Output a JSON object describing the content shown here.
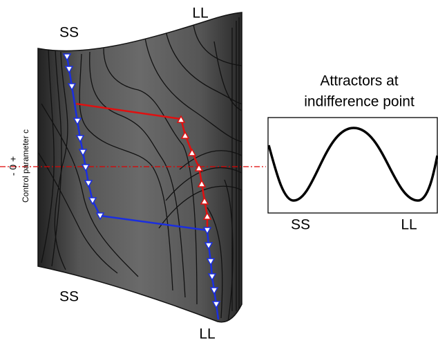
{
  "labels": {
    "top_left": "SS",
    "top_right": "LL",
    "bottom_left": "SS",
    "bottom_right": "LL"
  },
  "axis": {
    "label": "Control parameter c",
    "scale": "- 0 +"
  },
  "inset": {
    "title_line1": "Attractors at",
    "title_line2": "indifference point",
    "x_labels": [
      "SS",
      "LL"
    ]
  }
}
